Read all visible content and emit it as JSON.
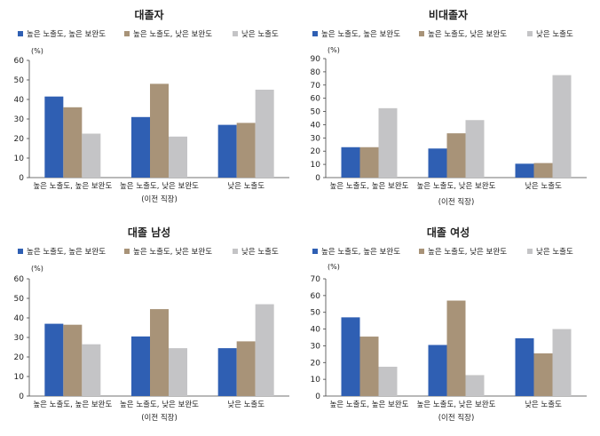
{
  "legend": [
    {
      "label": "높은 노출도, 높은 보완도",
      "color": "#2f5fb3"
    },
    {
      "label": "높은 노출도, 낮은 보완도",
      "color": "#a89378"
    },
    {
      "label": "낮은 노출도",
      "color": "#c4c4c6"
    }
  ],
  "chart_data": [
    {
      "type": "bar",
      "title": "대졸자",
      "categories": [
        "높은 노출도, 높은 보완도",
        "높은 노출도, 낮은 보완도",
        "낮은 노출도"
      ],
      "series": [
        {
          "name": "높은 노출도, 높은 보완도",
          "values": [
            41.5,
            31,
            27
          ]
        },
        {
          "name": "높은 노출도, 낮은 보완도",
          "values": [
            36,
            48,
            28
          ]
        },
        {
          "name": "낮은 노출도",
          "values": [
            22.5,
            21,
            45
          ]
        }
      ],
      "ylim": [
        0,
        60
      ],
      "yticks": [
        0,
        10,
        20,
        30,
        40,
        50,
        60
      ],
      "unit": "(%)",
      "xlabel": "(이전 직장)"
    },
    {
      "type": "bar",
      "title": "비대졸자",
      "categories": [
        "높은 노출도, 높은 보완도",
        "높은 노출도, 낮은 보완도",
        "낮은 노출도"
      ],
      "series": [
        {
          "name": "높은 노출도, 높은 보완도",
          "values": [
            23,
            22,
            10.5
          ]
        },
        {
          "name": "높은 노출도, 낮은 보완도",
          "values": [
            23,
            33.5,
            11
          ]
        },
        {
          "name": "낮은 노출도",
          "values": [
            52.5,
            43.5,
            77.5
          ]
        }
      ],
      "ylim": [
        0,
        90
      ],
      "yticks": [
        0,
        10,
        20,
        30,
        40,
        50,
        60,
        70,
        80,
        90
      ],
      "unit": "(%)",
      "xlabel": "(이전 직장)"
    },
    {
      "type": "bar",
      "title": "대졸 남성",
      "categories": [
        "높은 노출도, 높은 보완도",
        "높은 노출도, 낮은 보완도",
        "낮은 노출도"
      ],
      "series": [
        {
          "name": "높은 노출도, 높은 보완도",
          "values": [
            37,
            30.5,
            24.5
          ]
        },
        {
          "name": "높은 노출도, 낮은 보완도",
          "values": [
            36.5,
            44.5,
            28
          ]
        },
        {
          "name": "낮은 노출도",
          "values": [
            26.5,
            24.5,
            47
          ]
        }
      ],
      "ylim": [
        0,
        60
      ],
      "yticks": [
        0,
        10,
        20,
        30,
        40,
        50,
        60
      ],
      "unit": "(%)",
      "xlabel": "(이전 직장)"
    },
    {
      "type": "bar",
      "title": "대졸 여성",
      "categories": [
        "높은 노출도, 높은 보완도",
        "높은 노출도, 낮은 보완도",
        "낮은 노출도"
      ],
      "series": [
        {
          "name": "높은 노출도, 높은 보완도",
          "values": [
            47,
            30.5,
            34.5
          ]
        },
        {
          "name": "높은 노출도, 낮은 보완도",
          "values": [
            35.5,
            57,
            25.5
          ]
        },
        {
          "name": "낮은 노출도",
          "values": [
            17.5,
            12.5,
            40
          ]
        }
      ],
      "ylim": [
        0,
        70
      ],
      "yticks": [
        0,
        10,
        20,
        30,
        40,
        50,
        60,
        70
      ],
      "unit": "(%)",
      "xlabel": "(이전 직장)"
    }
  ]
}
